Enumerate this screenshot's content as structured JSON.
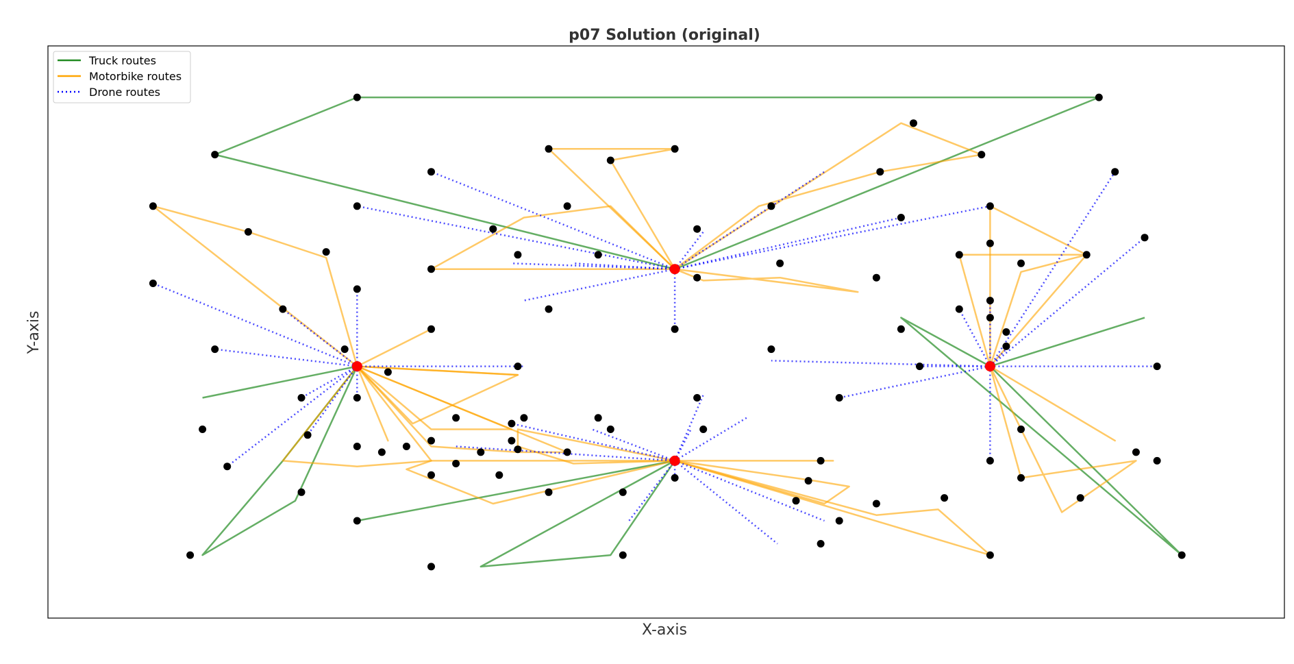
{
  "chart_data": {
    "type": "scatter",
    "title": "p07 Solution (original)",
    "xlabel": "X-axis",
    "ylabel": "Y-axis",
    "xlim": [
      0,
      100
    ],
    "ylim": [
      0,
      100
    ],
    "grid": false,
    "legend_position": "top-left",
    "colors": {
      "truck": "#228B22",
      "motorbike": "#FFA500",
      "drone": "#0000FF",
      "depot": "#FF0000",
      "customer": "#000000"
    },
    "legend": [
      {
        "key": "truck",
        "label": "Truck routes",
        "style": "solid"
      },
      {
        "key": "motorbike",
        "label": "Motorbike routes",
        "style": "solid"
      },
      {
        "key": "drone",
        "label": "Drone routes",
        "style": "dotted"
      }
    ],
    "depots": [
      [
        25,
        44
      ],
      [
        50.7,
        61
      ],
      [
        50.7,
        27.5
      ],
      [
        76.2,
        44
      ]
    ],
    "customers": [
      [
        25,
        91
      ],
      [
        85,
        91
      ],
      [
        13.5,
        81
      ],
      [
        70,
        86.5
      ],
      [
        40.5,
        82
      ],
      [
        50.7,
        82
      ],
      [
        45.5,
        80
      ],
      [
        75.5,
        81
      ],
      [
        31,
        78
      ],
      [
        67.3,
        78
      ],
      [
        86.3,
        78
      ],
      [
        8.5,
        72
      ],
      [
        25,
        72
      ],
      [
        42,
        72
      ],
      [
        58.5,
        72
      ],
      [
        76.2,
        72
      ],
      [
        69,
        70
      ],
      [
        16.2,
        67.5
      ],
      [
        22.5,
        64
      ],
      [
        36,
        68
      ],
      [
        52.5,
        68
      ],
      [
        76.2,
        65.5
      ],
      [
        88.7,
        66.5
      ],
      [
        38,
        63.5
      ],
      [
        44.5,
        63.5
      ],
      [
        73.7,
        63.5
      ],
      [
        84,
        63.5
      ],
      [
        31,
        61
      ],
      [
        59.2,
        62
      ],
      [
        78.7,
        62
      ],
      [
        8.5,
        58.5
      ],
      [
        52.5,
        59.5
      ],
      [
        67,
        59.5
      ],
      [
        25,
        57.5
      ],
      [
        76.2,
        55.5
      ],
      [
        19,
        54
      ],
      [
        40.5,
        54
      ],
      [
        73.7,
        54
      ],
      [
        31,
        50.5
      ],
      [
        50.7,
        50.5
      ],
      [
        69,
        50.5
      ],
      [
        76.2,
        52.5
      ],
      [
        13.5,
        47
      ],
      [
        24,
        47
      ],
      [
        58.5,
        47
      ],
      [
        77.5,
        47.5
      ],
      [
        77.5,
        50
      ],
      [
        38,
        44
      ],
      [
        70.5,
        44
      ],
      [
        89.7,
        44
      ],
      [
        27.5,
        43
      ],
      [
        20.5,
        38.5
      ],
      [
        25,
        38.5
      ],
      [
        52.5,
        38.5
      ],
      [
        64,
        38.5
      ],
      [
        12.5,
        33
      ],
      [
        37.5,
        34
      ],
      [
        33,
        35
      ],
      [
        38.5,
        35
      ],
      [
        44.5,
        35
      ],
      [
        21,
        32
      ],
      [
        45.5,
        33
      ],
      [
        53,
        33
      ],
      [
        78.7,
        33
      ],
      [
        31,
        31
      ],
      [
        37.5,
        31
      ],
      [
        29,
        30
      ],
      [
        35,
        29
      ],
      [
        42,
        29
      ],
      [
        88,
        29
      ],
      [
        25,
        30
      ],
      [
        38,
        29.5
      ],
      [
        27,
        29
      ],
      [
        14.5,
        26.5
      ],
      [
        33,
        27
      ],
      [
        62.5,
        27.5
      ],
      [
        76.2,
        27.5
      ],
      [
        89.7,
        27.5
      ],
      [
        31,
        25
      ],
      [
        36.5,
        25
      ],
      [
        50.7,
        24.5
      ],
      [
        61.5,
        24
      ],
      [
        20.5,
        22
      ],
      [
        40.5,
        22
      ],
      [
        46.5,
        22
      ],
      [
        67,
        20
      ],
      [
        72.5,
        21
      ],
      [
        78.7,
        24.5
      ],
      [
        60.5,
        20.5
      ],
      [
        83.5,
        21
      ],
      [
        25,
        17
      ],
      [
        64,
        17
      ],
      [
        62.5,
        13
      ],
      [
        11.5,
        11
      ],
      [
        46.5,
        11
      ],
      [
        76.2,
        11
      ],
      [
        91.7,
        11
      ],
      [
        31,
        9
      ]
    ],
    "truck_routes": [
      [
        [
          50.7,
          61
        ],
        [
          13.5,
          81
        ],
        [
          25,
          91
        ],
        [
          85,
          91
        ],
        [
          50.7,
          61
        ]
      ],
      [
        [
          25,
          44
        ],
        [
          12.5,
          38.5
        ]
      ],
      [
        [
          25,
          44
        ],
        [
          19,
          27.5
        ],
        [
          12.5,
          11
        ],
        [
          20,
          20.5
        ],
        [
          25,
          44
        ]
      ],
      [
        [
          50.7,
          27.5
        ],
        [
          25,
          17
        ]
      ],
      [
        [
          50.7,
          27.5
        ],
        [
          45.5,
          11
        ],
        [
          35,
          9
        ],
        [
          50.7,
          27.5
        ]
      ],
      [
        [
          76.2,
          44
        ],
        [
          69,
          52.5
        ],
        [
          91.7,
          11
        ],
        [
          76.2,
          44
        ]
      ],
      [
        [
          76.2,
          44
        ],
        [
          88.7,
          52.5
        ]
      ]
    ],
    "motorbike_routes": [
      [
        [
          25,
          44
        ],
        [
          8.5,
          72
        ],
        [
          16.2,
          67.5
        ],
        [
          22.5,
          63
        ],
        [
          25,
          44
        ]
      ],
      [
        [
          25,
          44
        ],
        [
          31,
          50.5
        ],
        [
          25,
          44
        ]
      ],
      [
        [
          25,
          44
        ],
        [
          38,
          42.5
        ],
        [
          25,
          44
        ]
      ],
      [
        [
          25,
          44
        ],
        [
          27.5,
          31
        ],
        [
          25,
          44
        ]
      ],
      [
        [
          25,
          44
        ],
        [
          31,
          33
        ],
        [
          34,
          33
        ],
        [
          37.5,
          33
        ],
        [
          25,
          44
        ]
      ],
      [
        [
          25,
          44
        ],
        [
          29.5,
          34
        ],
        [
          38,
          42.5
        ],
        [
          25,
          44
        ]
      ],
      [
        [
          25,
          44
        ],
        [
          31,
          30
        ],
        [
          38,
          29
        ],
        [
          42,
          29
        ],
        [
          25,
          44
        ]
      ],
      [
        [
          25,
          44
        ],
        [
          19,
          27.5
        ],
        [
          25,
          26.5
        ],
        [
          31,
          27.5
        ],
        [
          25,
          44
        ]
      ],
      [
        [
          50.7,
          61
        ],
        [
          31,
          61
        ],
        [
          38.5,
          70
        ],
        [
          45.5,
          72
        ],
        [
          50.7,
          61
        ]
      ],
      [
        [
          50.7,
          61
        ],
        [
          40.5,
          82
        ],
        [
          50.7,
          82
        ],
        [
          45.5,
          80
        ],
        [
          50.7,
          61
        ]
      ],
      [
        [
          50.7,
          61
        ],
        [
          57.5,
          72
        ],
        [
          67.3,
          78
        ],
        [
          75.5,
          81
        ],
        [
          69,
          86.5
        ],
        [
          50.7,
          61
        ]
      ],
      [
        [
          50.7,
          61
        ],
        [
          53,
          59
        ],
        [
          59.2,
          59.5
        ],
        [
          65.5,
          57
        ],
        [
          50.7,
          61
        ]
      ],
      [
        [
          50.7,
          27.5
        ],
        [
          38,
          33
        ],
        [
          38,
          30
        ],
        [
          42.5,
          27
        ],
        [
          50.7,
          27.5
        ]
      ],
      [
        [
          50.7,
          27.5
        ],
        [
          31,
          27.5
        ],
        [
          29,
          26
        ],
        [
          36,
          20
        ],
        [
          50.7,
          27.5
        ]
      ],
      [
        [
          50.7,
          27.5
        ],
        [
          63.5,
          27.5
        ],
        [
          50.7,
          27.5
        ]
      ],
      [
        [
          50.7,
          27.5
        ],
        [
          62,
          24
        ],
        [
          64.8,
          23
        ],
        [
          62.8,
          20
        ],
        [
          50.7,
          27.5
        ]
      ],
      [
        [
          50.7,
          27.5
        ],
        [
          67,
          18
        ],
        [
          72,
          19
        ],
        [
          76.2,
          11
        ],
        [
          50.7,
          27.5
        ]
      ],
      [
        [
          76.2,
          44
        ],
        [
          76.2,
          72
        ],
        [
          84,
          63.5
        ],
        [
          76.2,
          44
        ]
      ],
      [
        [
          76.2,
          44
        ],
        [
          73.7,
          63.5
        ],
        [
          84,
          63.5
        ],
        [
          78.7,
          60.5
        ],
        [
          76.2,
          44
        ]
      ],
      [
        [
          76.2,
          44
        ],
        [
          86.3,
          31
        ],
        [
          76.2,
          44
        ]
      ],
      [
        [
          76.2,
          44
        ],
        [
          82,
          18.5
        ],
        [
          88,
          27.5
        ],
        [
          78.7,
          24.5
        ],
        [
          76.2,
          44
        ]
      ]
    ],
    "drone_routes": [
      [
        [
          25,
          44
        ],
        [
          8.5,
          58.5
        ]
      ],
      [
        [
          25,
          44
        ],
        [
          13.5,
          47
        ]
      ],
      [
        [
          25,
          44
        ],
        [
          19,
          54
        ]
      ],
      [
        [
          25,
          44
        ],
        [
          25,
          57.5
        ]
      ],
      [
        [
          25,
          44
        ],
        [
          38.5,
          44
        ]
      ],
      [
        [
          25,
          44
        ],
        [
          20.5,
          38.5
        ]
      ],
      [
        [
          25,
          44
        ],
        [
          14.5,
          26.5
        ]
      ],
      [
        [
          25,
          44
        ],
        [
          21,
          32
        ]
      ],
      [
        [
          25,
          44
        ],
        [
          25,
          38.5
        ]
      ],
      [
        [
          50.7,
          61
        ],
        [
          31,
          78
        ]
      ],
      [
        [
          50.7,
          61
        ],
        [
          25,
          72
        ]
      ],
      [
        [
          50.7,
          61
        ],
        [
          37.5,
          62
        ]
      ],
      [
        [
          50.7,
          61
        ],
        [
          42.5,
          62
        ]
      ],
      [
        [
          50.7,
          61
        ],
        [
          38.5,
          55.5
        ]
      ],
      [
        [
          50.7,
          61
        ],
        [
          50.7,
          50.5
        ]
      ],
      [
        [
          50.7,
          61
        ],
        [
          53,
          67.5
        ]
      ],
      [
        [
          50.7,
          61
        ],
        [
          62.8,
          78
        ]
      ],
      [
        [
          50.7,
          61
        ],
        [
          76.2,
          72
        ]
      ],
      [
        [
          50.7,
          61
        ],
        [
          69,
          70
        ]
      ],
      [
        [
          50.7,
          27.5
        ],
        [
          37.5,
          34
        ]
      ],
      [
        [
          50.7,
          27.5
        ],
        [
          44,
          33
        ]
      ],
      [
        [
          50.7,
          27.5
        ],
        [
          33,
          30
        ]
      ],
      [
        [
          50.7,
          27.5
        ],
        [
          53,
          39
        ]
      ],
      [
        [
          50.7,
          27.5
        ],
        [
          56.5,
          35
        ]
      ],
      [
        [
          50.7,
          27.5
        ],
        [
          52,
          33
        ]
      ],
      [
        [
          50.7,
          27.5
        ],
        [
          59,
          13
        ]
      ],
      [
        [
          50.7,
          27.5
        ],
        [
          62.8,
          17
        ]
      ],
      [
        [
          50.7,
          27.5
        ],
        [
          47,
          17
        ]
      ],
      [
        [
          50.7,
          27.5
        ],
        [
          50.7,
          24.5
        ]
      ],
      [
        [
          76.2,
          44
        ],
        [
          58.5,
          45
        ]
      ],
      [
        [
          76.2,
          44
        ],
        [
          64,
          38.5
        ]
      ],
      [
        [
          76.2,
          44
        ],
        [
          70.5,
          44
        ]
      ],
      [
        [
          76.2,
          44
        ],
        [
          73.7,
          54
        ]
      ],
      [
        [
          76.2,
          44
        ],
        [
          76.2,
          55.5
        ]
      ],
      [
        [
          76.2,
          44
        ],
        [
          77.5,
          47
        ]
      ],
      [
        [
          76.2,
          44
        ],
        [
          86.3,
          78
        ]
      ],
      [
        [
          76.2,
          44
        ],
        [
          88.7,
          66.5
        ]
      ],
      [
        [
          76.2,
          44
        ],
        [
          89.7,
          44
        ]
      ],
      [
        [
          76.2,
          44
        ],
        [
          76.2,
          27.5
        ]
      ]
    ]
  }
}
